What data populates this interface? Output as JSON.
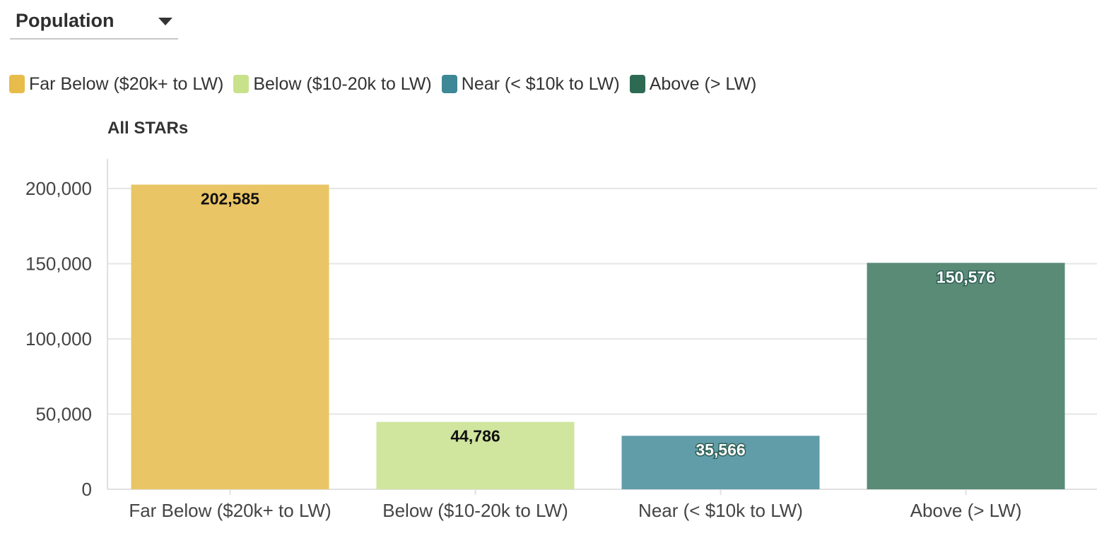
{
  "dropdown": {
    "label": "Population"
  },
  "legend": [
    {
      "label": "Far Below ($20k+ to LW)",
      "color": "#e8bc4a"
    },
    {
      "label": "Below ($10-20k to LW)",
      "color": "#c8e28c"
    },
    {
      "label": "Near (< $10k to LW)",
      "color": "#3e8796"
    },
    {
      "label": "Above (> LW)",
      "color": "#2e6a53"
    }
  ],
  "chart_data": {
    "type": "bar",
    "title": "All STARs",
    "xlabel": "",
    "ylabel": "",
    "categories": [
      "Far Below ($20k+ to LW)",
      "Below ($10-20k to LW)",
      "Near (< $10k to LW)",
      "Above (> LW)"
    ],
    "values": [
      202585,
      44786,
      35566,
      150576
    ],
    "value_labels": [
      "202,585",
      "44,786",
      "35,566",
      "150,576"
    ],
    "bar_colors": [
      "#e9c565",
      "#d0e59e",
      "#619da9",
      "#5a8b77"
    ],
    "label_colors": [
      "#111111",
      "#111111",
      "#ffffff",
      "#ffffff"
    ],
    "ylim": [
      0,
      200000
    ],
    "yticks": [
      0,
      50000,
      100000,
      150000,
      200000
    ],
    "ytick_labels": [
      "0",
      "50,000",
      "100,000",
      "150,000",
      "200,000"
    ],
    "grid": true,
    "legend_position": "top-left"
  }
}
